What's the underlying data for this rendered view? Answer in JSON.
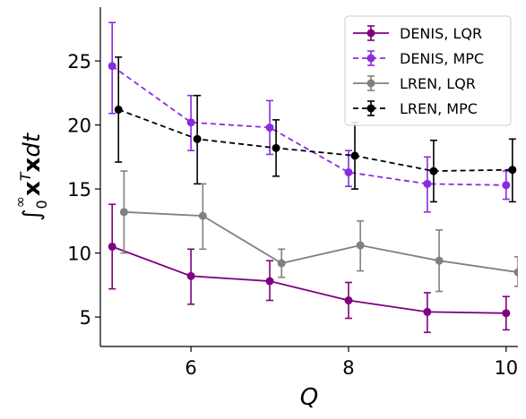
{
  "chart_data": {
    "type": "line",
    "title": "",
    "xlabel": "Q",
    "ylabel_parts": {
      "int": "∫",
      "sub": "0",
      "sup": "∞",
      "x1": "x",
      "t": "T",
      "x2": "x",
      "dt": "dt"
    },
    "xlim": [
      4.85,
      10.15
    ],
    "ylim": [
      2.7,
      29.2
    ],
    "xticks": [
      6,
      8,
      10
    ],
    "yticks": [
      5,
      10,
      15,
      20,
      25
    ],
    "grid": false,
    "legend_position": "top-right",
    "series": [
      {
        "name": "DENIS, LQR",
        "color": "#800080",
        "dashed": false,
        "x": [
          5,
          6,
          7,
          8,
          9,
          10
        ],
        "y": [
          10.5,
          8.2,
          7.8,
          6.3,
          5.4,
          5.3
        ],
        "yerr_low": [
          7.2,
          6.0,
          6.3,
          4.9,
          3.8,
          4.0
        ],
        "yerr_high": [
          13.8,
          10.3,
          9.4,
          7.7,
          6.9,
          6.6
        ]
      },
      {
        "name": "DENIS, MPC",
        "color": "#8a2be2",
        "dashed": true,
        "x": [
          5,
          6,
          7,
          8,
          9,
          10
        ],
        "y": [
          24.6,
          20.2,
          19.8,
          16.3,
          15.4,
          15.3
        ],
        "yerr_low": [
          20.9,
          18.0,
          17.7,
          15.2,
          13.2,
          14.2
        ],
        "yerr_high": [
          28.0,
          22.3,
          21.9,
          18.0,
          17.5,
          16.4
        ]
      },
      {
        "name": "LREN, LQR",
        "color": "#808080",
        "dashed": false,
        "x": [
          5.15,
          6.15,
          7.15,
          8.15,
          9.15,
          10.15
        ],
        "y": [
          13.2,
          12.9,
          9.2,
          10.6,
          9.4,
          8.5
        ],
        "yerr_low": [
          10.0,
          10.3,
          8.1,
          8.6,
          7.0,
          7.4
        ],
        "yerr_high": [
          16.4,
          15.4,
          10.3,
          12.5,
          11.8,
          9.7
        ]
      },
      {
        "name": "LREN, MPC",
        "color": "#000000",
        "dashed": true,
        "x": [
          5.08,
          6.08,
          7.08,
          8.08,
          9.08,
          10.08
        ],
        "y": [
          21.2,
          18.9,
          18.2,
          17.6,
          16.4,
          16.5
        ],
        "yerr_low": [
          17.1,
          15.4,
          16.0,
          15.0,
          14.0,
          14.0
        ],
        "yerr_high": [
          25.3,
          22.3,
          20.4,
          20.2,
          18.8,
          18.9
        ]
      }
    ]
  }
}
